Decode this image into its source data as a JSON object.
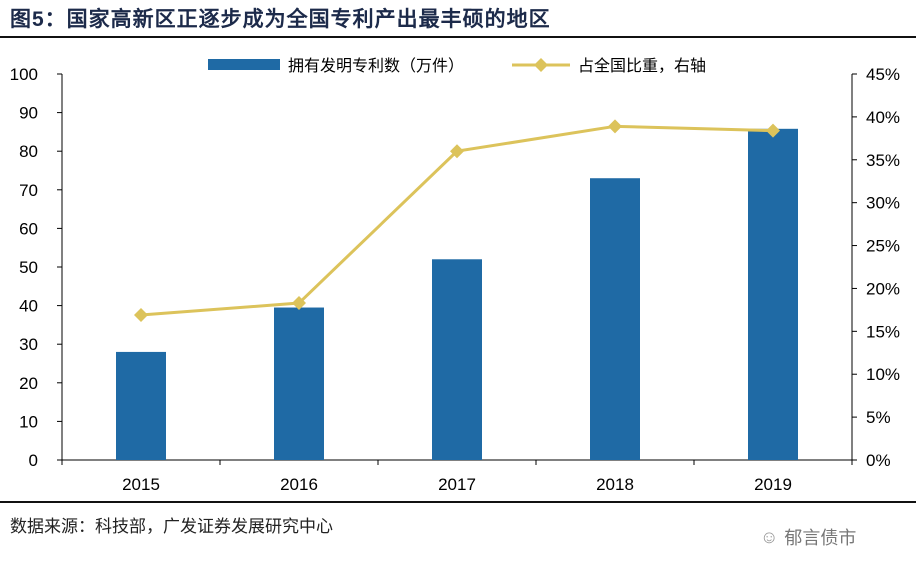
{
  "title": "图5：国家高新区正逐步成为全国专利产出最丰硕的地区",
  "source": "数据来源：科技部，广发证券发展研究中心",
  "watermark": "郁言债市",
  "chart_data": {
    "type": "bar+line",
    "categories": [
      "2015",
      "2016",
      "2017",
      "2018",
      "2019"
    ],
    "series": [
      {
        "name": "拥有发明专利数（万件）",
        "type": "bar",
        "axis": "left",
        "color": "#1f6aa5",
        "values": [
          28,
          39.5,
          52,
          73,
          85.8
        ]
      },
      {
        "name": "占全国比重，右轴",
        "type": "line",
        "axis": "right",
        "color": "#dcc35b",
        "marker": "diamond",
        "values": [
          16.9,
          18.3,
          36.0,
          38.9,
          38.4
        ]
      }
    ],
    "left_axis": {
      "min": 0,
      "max": 100,
      "ticks": [
        "0",
        "10",
        "20",
        "30",
        "40",
        "50",
        "60",
        "70",
        "80",
        "90",
        "100"
      ]
    },
    "right_axis": {
      "min": 0,
      "max": 45,
      "ticks": [
        "0%",
        "5%",
        "10%",
        "15%",
        "20%",
        "25%",
        "30%",
        "35%",
        "40%",
        "45%"
      ]
    },
    "grid": false,
    "legend_position": "top"
  }
}
